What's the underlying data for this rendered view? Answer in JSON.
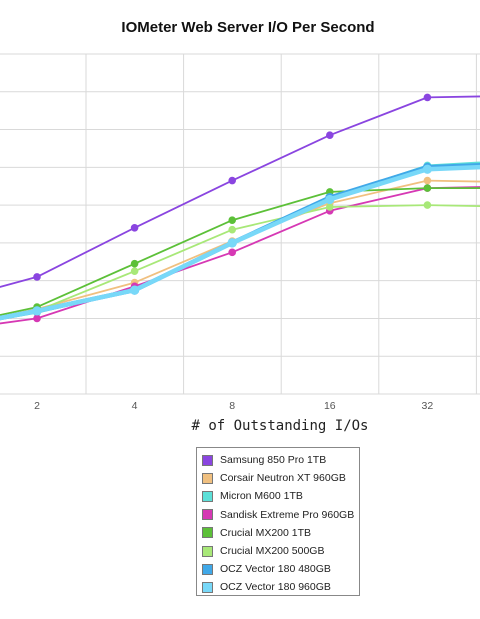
{
  "chart_data": {
    "type": "line",
    "title": "IOMeter Web Server I/O Per Second",
    "xlabel": "# of Outstanding I/Os",
    "ylabel": "",
    "x": [
      1,
      2,
      4,
      8,
      16,
      32,
      64
    ],
    "xtick_labels": [
      "2",
      "4",
      "8",
      "16",
      "32"
    ],
    "ylim": [
      0,
      9
    ],
    "grid": true,
    "legend_position": "bottom-center",
    "series": [
      {
        "name": "Samsung 850 Pro 1TB",
        "color": "#8a45e0",
        "values": [
          2.4,
          3.1,
          4.4,
          5.65,
          6.85,
          7.85,
          7.9
        ]
      },
      {
        "name": "Corsair Neutron XT 960GB",
        "color": "#f0c080",
        "values": [
          1.7,
          2.25,
          2.95,
          4.05,
          5.05,
          5.65,
          5.6
        ]
      },
      {
        "name": "Micron M600 1TB",
        "color": "#5ce0d8",
        "values": [
          1.7,
          2.15,
          2.75,
          4.0,
          5.2,
          6.05,
          6.2
        ]
      },
      {
        "name": "Sandisk Extreme Pro 960GB",
        "color": "#d638b4",
        "values": [
          1.65,
          2.0,
          2.85,
          3.75,
          4.85,
          5.45,
          5.5
        ]
      },
      {
        "name": "Crucial MX200 1TB",
        "color": "#5cc038",
        "values": [
          1.75,
          2.3,
          3.45,
          4.6,
          5.35,
          5.45,
          5.45
        ]
      },
      {
        "name": "Crucial MX200 500GB",
        "color": "#a8e878",
        "values": [
          1.7,
          2.2,
          3.25,
          4.35,
          4.95,
          5.0,
          4.95
        ]
      },
      {
        "name": "OCZ Vector 180 480GB",
        "color": "#40a8e8",
        "values": [
          1.7,
          2.2,
          2.75,
          4.0,
          5.2,
          6.0,
          6.1
        ]
      },
      {
        "name": "OCZ Vector 180 960GB",
        "color": "#78d8f8",
        "values": [
          1.7,
          2.2,
          2.75,
          4.0,
          5.15,
          5.95,
          6.05
        ]
      }
    ]
  }
}
